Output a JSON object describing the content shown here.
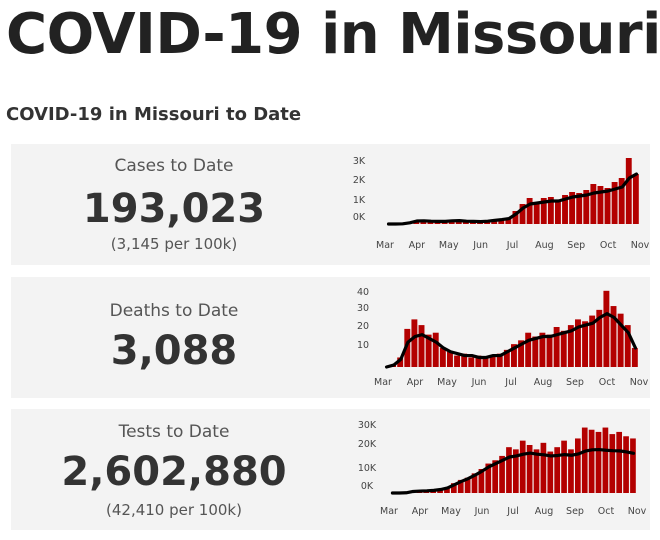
{
  "page": {
    "title": "COVID-19 in Missouri",
    "section_title": "COVID-19 in Missouri to Date"
  },
  "colors": {
    "bar": "#b30000",
    "average_line": "#000000",
    "card_background": "#f3f3f3"
  },
  "cards": [
    {
      "label": "Cases to Date",
      "value": "193,023",
      "sub": "(3,145 per 100k)",
      "y_tick_labels": [
        "3K",
        "2K",
        "1K",
        "0K"
      ],
      "x_tick_labels": [
        "Mar",
        "Apr",
        "May",
        "Jun",
        "Jul",
        "Aug",
        "Sep",
        "Oct",
        "Nov"
      ]
    },
    {
      "label": "Deaths to Date",
      "value": "3,088",
      "y_tick_labels": [
        "40",
        "30",
        "20",
        "10"
      ],
      "x_tick_labels": [
        "Mar",
        "Apr",
        "May",
        "Jun",
        "Jul",
        "Aug",
        "Sep",
        "Oct",
        "Nov"
      ]
    },
    {
      "label": "Tests to Date",
      "value": "2,602,880",
      "sub": "(42,410 per 100k)",
      "y_tick_labels": [
        "30K",
        "20K",
        "10K",
        "0K"
      ],
      "x_tick_labels": [
        "Mar",
        "Apr",
        "May",
        "Jun",
        "Jul",
        "Aug",
        "Sep",
        "Oct",
        "Nov"
      ]
    }
  ],
  "chart_data": [
    {
      "type": "bar",
      "title": "",
      "xlabel": "",
      "ylabel": "",
      "ylim": [
        0,
        3500
      ],
      "x_range": [
        "Mar",
        "Nov"
      ],
      "series": [
        {
          "kind": "daily-bars",
          "values": [
            0,
            0,
            0,
            30,
            150,
            200,
            150,
            120,
            150,
            200,
            180,
            130,
            120,
            100,
            150,
            200,
            250,
            300,
            650,
            1000,
            1300,
            1100,
            1300,
            1350,
            1200,
            1450,
            1600,
            1550,
            1700,
            2000,
            1900,
            1800,
            2100,
            2300,
            3300,
            2500
          ]
        },
        {
          "kind": "7-day-average",
          "values": [
            0,
            0,
            10,
            60,
            150,
            160,
            140,
            130,
            130,
            160,
            170,
            140,
            130,
            120,
            140,
            180,
            220,
            270,
            500,
            800,
            1000,
            1050,
            1100,
            1150,
            1150,
            1250,
            1350,
            1400,
            1450,
            1550,
            1600,
            1650,
            1750,
            1850,
            2300,
            2500
          ]
        }
      ]
    },
    {
      "type": "bar",
      "title": "",
      "xlabel": "",
      "ylabel": "",
      "ylim": [
        0,
        42
      ],
      "x_range": [
        "Mar",
        "Nov"
      ],
      "series": [
        {
          "kind": "daily-bars",
          "values": [
            0,
            1,
            5,
            20,
            25,
            22,
            17,
            18,
            10,
            8,
            6,
            7,
            5,
            6,
            5,
            6,
            7,
            9,
            12,
            14,
            18,
            16,
            18,
            17,
            21,
            19,
            22,
            25,
            24,
            27,
            30,
            40,
            32,
            28,
            22,
            10
          ]
        },
        {
          "kind": "7-day-average",
          "values": [
            0,
            1,
            4,
            13,
            16,
            17,
            15,
            13,
            10,
            8,
            7,
            6,
            6,
            5,
            5,
            6,
            6,
            8,
            10,
            12,
            14,
            15,
            16,
            16,
            17,
            18,
            19,
            21,
            22,
            23,
            26,
            28,
            26,
            22,
            18,
            10
          ]
        }
      ]
    },
    {
      "type": "bar",
      "title": "",
      "xlabel": "",
      "ylabel": "",
      "ylim": [
        0,
        33000
      ],
      "x_range": [
        "Mar",
        "Nov"
      ],
      "series": [
        {
          "kind": "daily-bars",
          "values": [
            0,
            0,
            200,
            900,
            1200,
            1100,
            1400,
            1800,
            2500,
            4500,
            6000,
            7000,
            9000,
            11000,
            13500,
            15000,
            17000,
            21000,
            20000,
            24000,
            22000,
            20000,
            23000,
            19000,
            21000,
            24000,
            20000,
            25000,
            30000,
            29000,
            28000,
            30000,
            27000,
            28000,
            26000,
            25000
          ]
        },
        {
          "kind": "7-day-average",
          "values": [
            0,
            0,
            100,
            700,
            900,
            1000,
            1200,
            1600,
            2300,
            3800,
            5300,
            6600,
            8200,
            10000,
            12000,
            13500,
            15000,
            16500,
            17000,
            17800,
            18300,
            17800,
            17500,
            17000,
            17200,
            17600,
            17300,
            17900,
            19200,
            19800,
            19900,
            19600,
            19400,
            19300,
            18800,
            18200
          ]
        }
      ]
    }
  ]
}
